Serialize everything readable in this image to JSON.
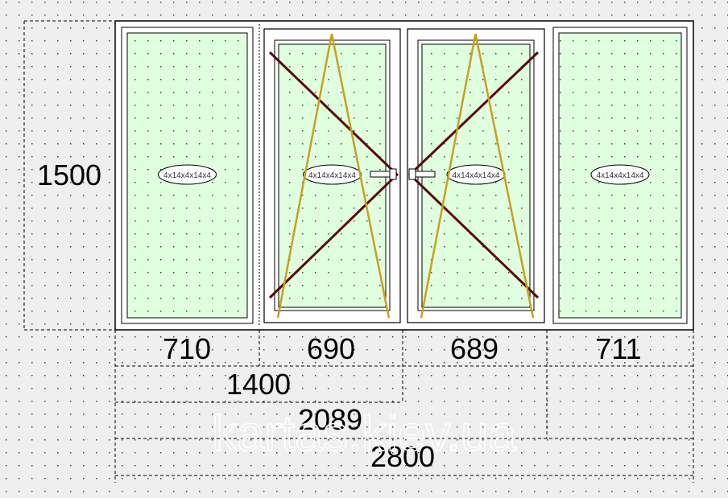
{
  "window": {
    "height_label": "1500",
    "glass_label": "4x14x4x14x4",
    "panes": [
      {
        "type": "fixed",
        "width_label": "710"
      },
      {
        "type": "tilt-turn",
        "hinge": "left",
        "width_label": "690"
      },
      {
        "type": "tilt-turn",
        "hinge": "right",
        "width_label": "689"
      },
      {
        "type": "fixed",
        "width_label": "711"
      }
    ]
  },
  "dimensions": {
    "d1400": "1400",
    "d2089": "2089",
    "d2800": "2800"
  },
  "watermark": "kartas.kiev.ua",
  "colors": {
    "glass": "#dfffdf",
    "frame": "#ffffff",
    "opening_line": "#5a0a0a",
    "tilt_line": "#c8a020",
    "background": "#efefef"
  }
}
